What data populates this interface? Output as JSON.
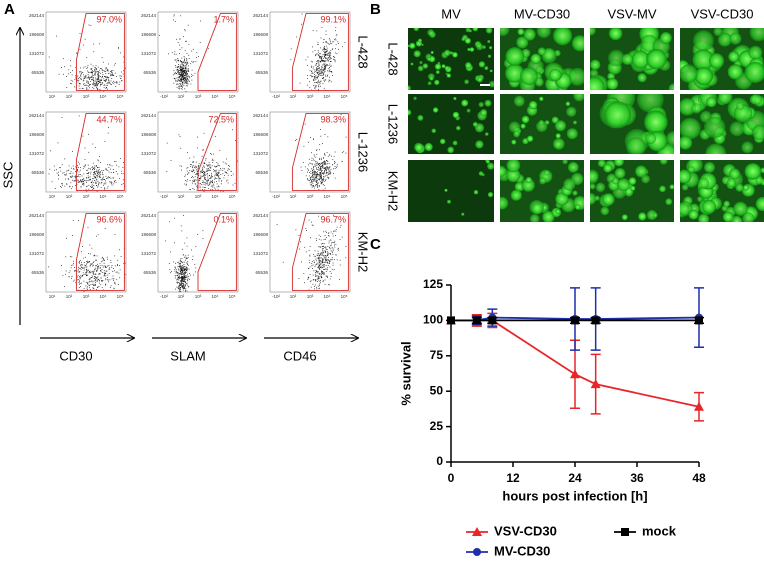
{
  "panel_a": {
    "label": "A",
    "y_label": "SSC",
    "columns": [
      "CD30",
      "SLAM",
      "CD46"
    ],
    "rows": [
      "L-428",
      "L-1236",
      "KM-H2"
    ],
    "percentages": [
      [
        "97.0%",
        "1.7%",
        "99.1%"
      ],
      [
        "44.7%",
        "72.5%",
        "98.3%"
      ],
      [
        "96.6%",
        "0.1%",
        "96.7%"
      ]
    ],
    "y_tick_labels": [
      "262144",
      "196608",
      "131072",
      "65536"
    ],
    "x_tick_labels": [
      [
        "10¹",
        "10²",
        "10³",
        "10⁴",
        "10⁵"
      ],
      [
        "-10²",
        "10²",
        "10³",
        "10⁴",
        "10⁵"
      ],
      [
        "-10²",
        "10²",
        "10³",
        "10⁴",
        "10⁵"
      ]
    ]
  },
  "panel_b": {
    "label": "B",
    "columns": [
      "MV",
      "MV-CD30",
      "VSV-MV",
      "VSV-CD30"
    ],
    "rows": [
      "L-428",
      "L-1236",
      "KM-H2"
    ]
  },
  "chart_data": {
    "type": "line",
    "panel_label": "C",
    "y_label": "% survival",
    "x_label": "hours post infection [h]",
    "x": [
      0,
      5,
      8,
      24,
      28,
      48
    ],
    "series": [
      {
        "name": "VSV-CD30",
        "color": "#e8262a",
        "marker": "triangle",
        "values": [
          100,
          100,
          100,
          62,
          55,
          39
        ],
        "errors": [
          0,
          4,
          5,
          24,
          21,
          10
        ]
      },
      {
        "name": "MV-CD30",
        "color": "#1f2fa8",
        "marker": "circle",
        "values": [
          100,
          100,
          102,
          101,
          101,
          102
        ],
        "errors": [
          0,
          3,
          6,
          22,
          22,
          21
        ]
      },
      {
        "name": "mock",
        "color": "#000000",
        "marker": "square",
        "values": [
          100,
          100,
          100,
          100,
          100,
          100
        ],
        "errors": [
          0,
          2,
          2,
          2,
          2,
          2
        ]
      }
    ],
    "xlim": [
      0,
      48
    ],
    "xticks": [
      0,
      12,
      24,
      36,
      48
    ],
    "ylim": [
      0,
      125
    ],
    "yticks": [
      0,
      25,
      50,
      75,
      100,
      125
    ],
    "legend": "bottom"
  }
}
